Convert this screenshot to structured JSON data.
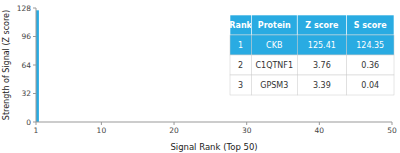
{
  "chart_data": {
    "type": "bar",
    "xlabel": "Signal Rank (Top 50)",
    "ylabel": "Strength of Signal (Z score)",
    "x": [
      1
    ],
    "values": [
      125.41
    ],
    "color": "#29abe2",
    "xlim": [
      1,
      50
    ],
    "ylim": [
      0,
      128
    ],
    "xticks": [
      1,
      10,
      20,
      30,
      40,
      50
    ],
    "yticks": [
      0,
      32,
      64,
      96,
      128
    ],
    "grid": false,
    "table": {
      "headers": [
        "Rank",
        "Protein",
        "Z score",
        "S score"
      ],
      "rows": [
        [
          "1",
          "CKB",
          "125.41",
          "124.35"
        ],
        [
          "2",
          "C1QTNF1",
          "3.76",
          "0.36"
        ],
        [
          "3",
          "GPSM3",
          "3.39",
          "0.04"
        ]
      ]
    }
  }
}
